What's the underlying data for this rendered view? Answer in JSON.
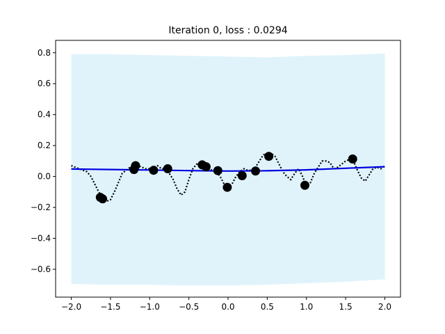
{
  "chart_data": {
    "type": "line",
    "title": "Iteration 0, loss : 0.0294",
    "xlabel": "",
    "ylabel": "",
    "xlim": [
      -2.2,
      2.2
    ],
    "ylim": [
      -0.78,
      0.88
    ],
    "xticks": [
      -2.0,
      -1.5,
      -1.0,
      -0.5,
      0.0,
      0.5,
      1.0,
      1.5,
      2.0
    ],
    "xtick_labels": [
      "−2.0",
      "−1.5",
      "−1.0",
      "−0.5",
      "0.0",
      "0.5",
      "1.0",
      "1.5",
      "2.0"
    ],
    "yticks": [
      -0.6,
      -0.4,
      -0.2,
      0.0,
      0.2,
      0.4,
      0.6,
      0.8
    ],
    "ytick_labels": [
      "−0.6",
      "−0.4",
      "−0.2",
      "0.0",
      "0.2",
      "0.4",
      "0.6",
      "0.8"
    ],
    "grid": false,
    "colors": {
      "band": "#e0f3fb",
      "mean_line": "#0000e0",
      "truth_line": "#000000",
      "points": "#000000"
    },
    "band": {
      "x": [
        -2.0,
        -1.5,
        -1.0,
        -0.5,
        0.0,
        0.5,
        1.0,
        1.5,
        2.0
      ],
      "upper": [
        0.79,
        0.79,
        0.785,
        0.78,
        0.775,
        0.77,
        0.78,
        0.785,
        0.795
      ],
      "lower": [
        -0.695,
        -0.7,
        -0.7,
        -0.705,
        -0.705,
        -0.7,
        -0.69,
        -0.68,
        -0.665
      ]
    },
    "mean_line": {
      "x": [
        -2.0,
        -1.5,
        -1.0,
        -0.5,
        0.0,
        0.5,
        1.0,
        1.5,
        2.0
      ],
      "y": [
        0.048,
        0.045,
        0.042,
        0.038,
        0.035,
        0.037,
        0.043,
        0.053,
        0.063
      ]
    },
    "truth_line": {
      "x": [
        -2.0,
        -1.9,
        -1.8,
        -1.75,
        -1.7,
        -1.65,
        -1.6,
        -1.55,
        -1.5,
        -1.45,
        -1.4,
        -1.35,
        -1.3,
        -1.25,
        -1.2,
        -1.15,
        -1.1,
        -1.05,
        -1.0,
        -0.95,
        -0.9,
        -0.85,
        -0.8,
        -0.75,
        -0.7,
        -0.65,
        -0.6,
        -0.55,
        -0.5,
        -0.45,
        -0.4,
        -0.35,
        -0.3,
        -0.25,
        -0.2,
        -0.15,
        -0.1,
        -0.05,
        0.0,
        0.05,
        0.1,
        0.15,
        0.2,
        0.25,
        0.3,
        0.35,
        0.4,
        0.45,
        0.5,
        0.55,
        0.6,
        0.65,
        0.7,
        0.75,
        0.8,
        0.85,
        0.9,
        0.95,
        1.0,
        1.05,
        1.1,
        1.15,
        1.2,
        1.25,
        1.3,
        1.35,
        1.4,
        1.45,
        1.5,
        1.55,
        1.6,
        1.65,
        1.7,
        1.75,
        1.8,
        1.85,
        1.9,
        1.95,
        2.0
      ],
      "y": [
        0.07,
        0.05,
        0.03,
        0.0,
        -0.05,
        -0.1,
        -0.14,
        -0.16,
        -0.15,
        -0.1,
        -0.04,
        0.02,
        0.04,
        0.06,
        0.08,
        0.07,
        0.06,
        0.05,
        0.05,
        0.06,
        0.07,
        0.05,
        0.05,
        0.02,
        -0.02,
        -0.08,
        -0.12,
        -0.1,
        -0.02,
        0.05,
        0.08,
        0.07,
        0.06,
        0.05,
        0.04,
        0.03,
        0.0,
        -0.05,
        -0.07,
        -0.05,
        0.0,
        0.03,
        0.05,
        0.04,
        0.04,
        0.06,
        0.1,
        0.14,
        0.15,
        0.15,
        0.13,
        0.08,
        0.03,
        0.0,
        -0.02,
        0.02,
        0.05,
        0.0,
        -0.06,
        -0.04,
        0.02,
        0.06,
        0.1,
        0.1,
        0.09,
        0.05,
        0.06,
        0.08,
        0.1,
        0.11,
        0.1,
        0.04,
        -0.01,
        -0.03,
        0.01,
        0.05,
        0.06,
        0.05,
        0.07
      ]
    },
    "points": {
      "x": [
        -1.63,
        -1.6,
        -1.2,
        -1.18,
        -0.95,
        -0.77,
        -0.33,
        -0.28,
        -0.13,
        -0.01,
        0.18,
        0.35,
        0.52,
        0.98,
        1.59
      ],
      "y": [
        -0.135,
        -0.145,
        0.045,
        0.07,
        0.04,
        0.05,
        0.075,
        0.063,
        0.038,
        -0.07,
        0.005,
        0.035,
        0.13,
        -0.057,
        0.113
      ]
    }
  }
}
